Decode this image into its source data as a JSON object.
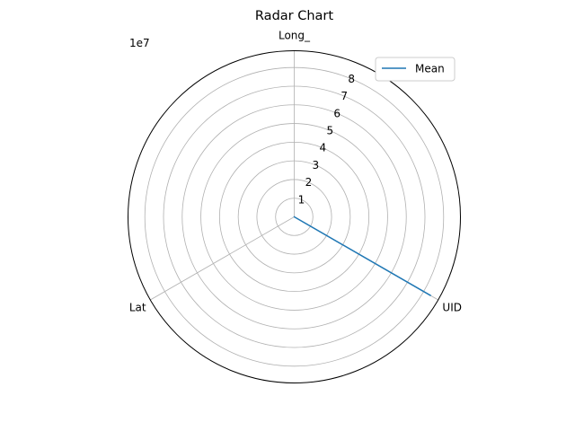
{
  "chart_data": {
    "type": "radar",
    "title": "Radar Chart",
    "scale_label": "1e7",
    "axes": [
      "UID",
      "Long_",
      "Lat"
    ],
    "rlim": [
      0,
      8.9
    ],
    "rticks": [
      1,
      2,
      3,
      4,
      5,
      6,
      7,
      8
    ],
    "rtick_labels": [
      "1",
      "2",
      "3",
      "4",
      "5",
      "6",
      "7",
      "8"
    ],
    "grid": true,
    "legend": "top-right",
    "series": [
      {
        "name": "Mean",
        "color": "#1f77b4",
        "values": [
          8.45,
          0,
          0
        ]
      }
    ]
  }
}
